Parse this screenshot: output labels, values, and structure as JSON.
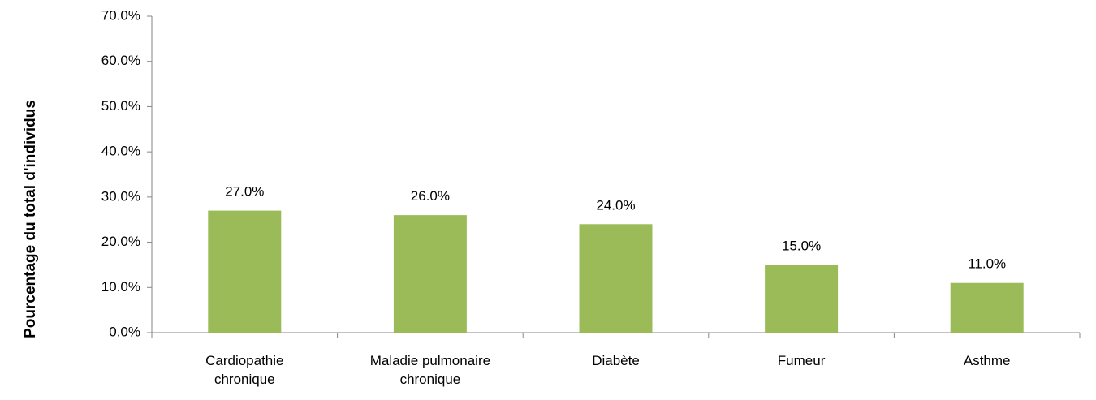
{
  "chart_data": {
    "type": "bar",
    "y_label": "Pourcentage du total d'individus",
    "categories": [
      "Cardiopathie chronique",
      "Maladie pulmonaire chronique",
      "Diabète",
      "Fumeur",
      "Asthme"
    ],
    "values": [
      27,
      26,
      24,
      15,
      11
    ],
    "value_labels": [
      "27.0%",
      "26.0%",
      "24.0%",
      "15.0%",
      "11.0%"
    ],
    "color": "#9bbb59",
    "ylim": [
      0,
      70
    ],
    "yticks": [
      {
        "value": 0,
        "label": "0.0%"
      },
      {
        "value": 10,
        "label": "10.0%"
      },
      {
        "value": 20,
        "label": "20.0%"
      },
      {
        "value": 30,
        "label": "30.0%"
      },
      {
        "value": 40,
        "label": "40.0%"
      },
      {
        "value": 50,
        "label": "50.0%"
      },
      {
        "value": 60,
        "label": "60.0%"
      },
      {
        "value": 70,
        "label": "70.0%"
      }
    ],
    "grid": false
  }
}
